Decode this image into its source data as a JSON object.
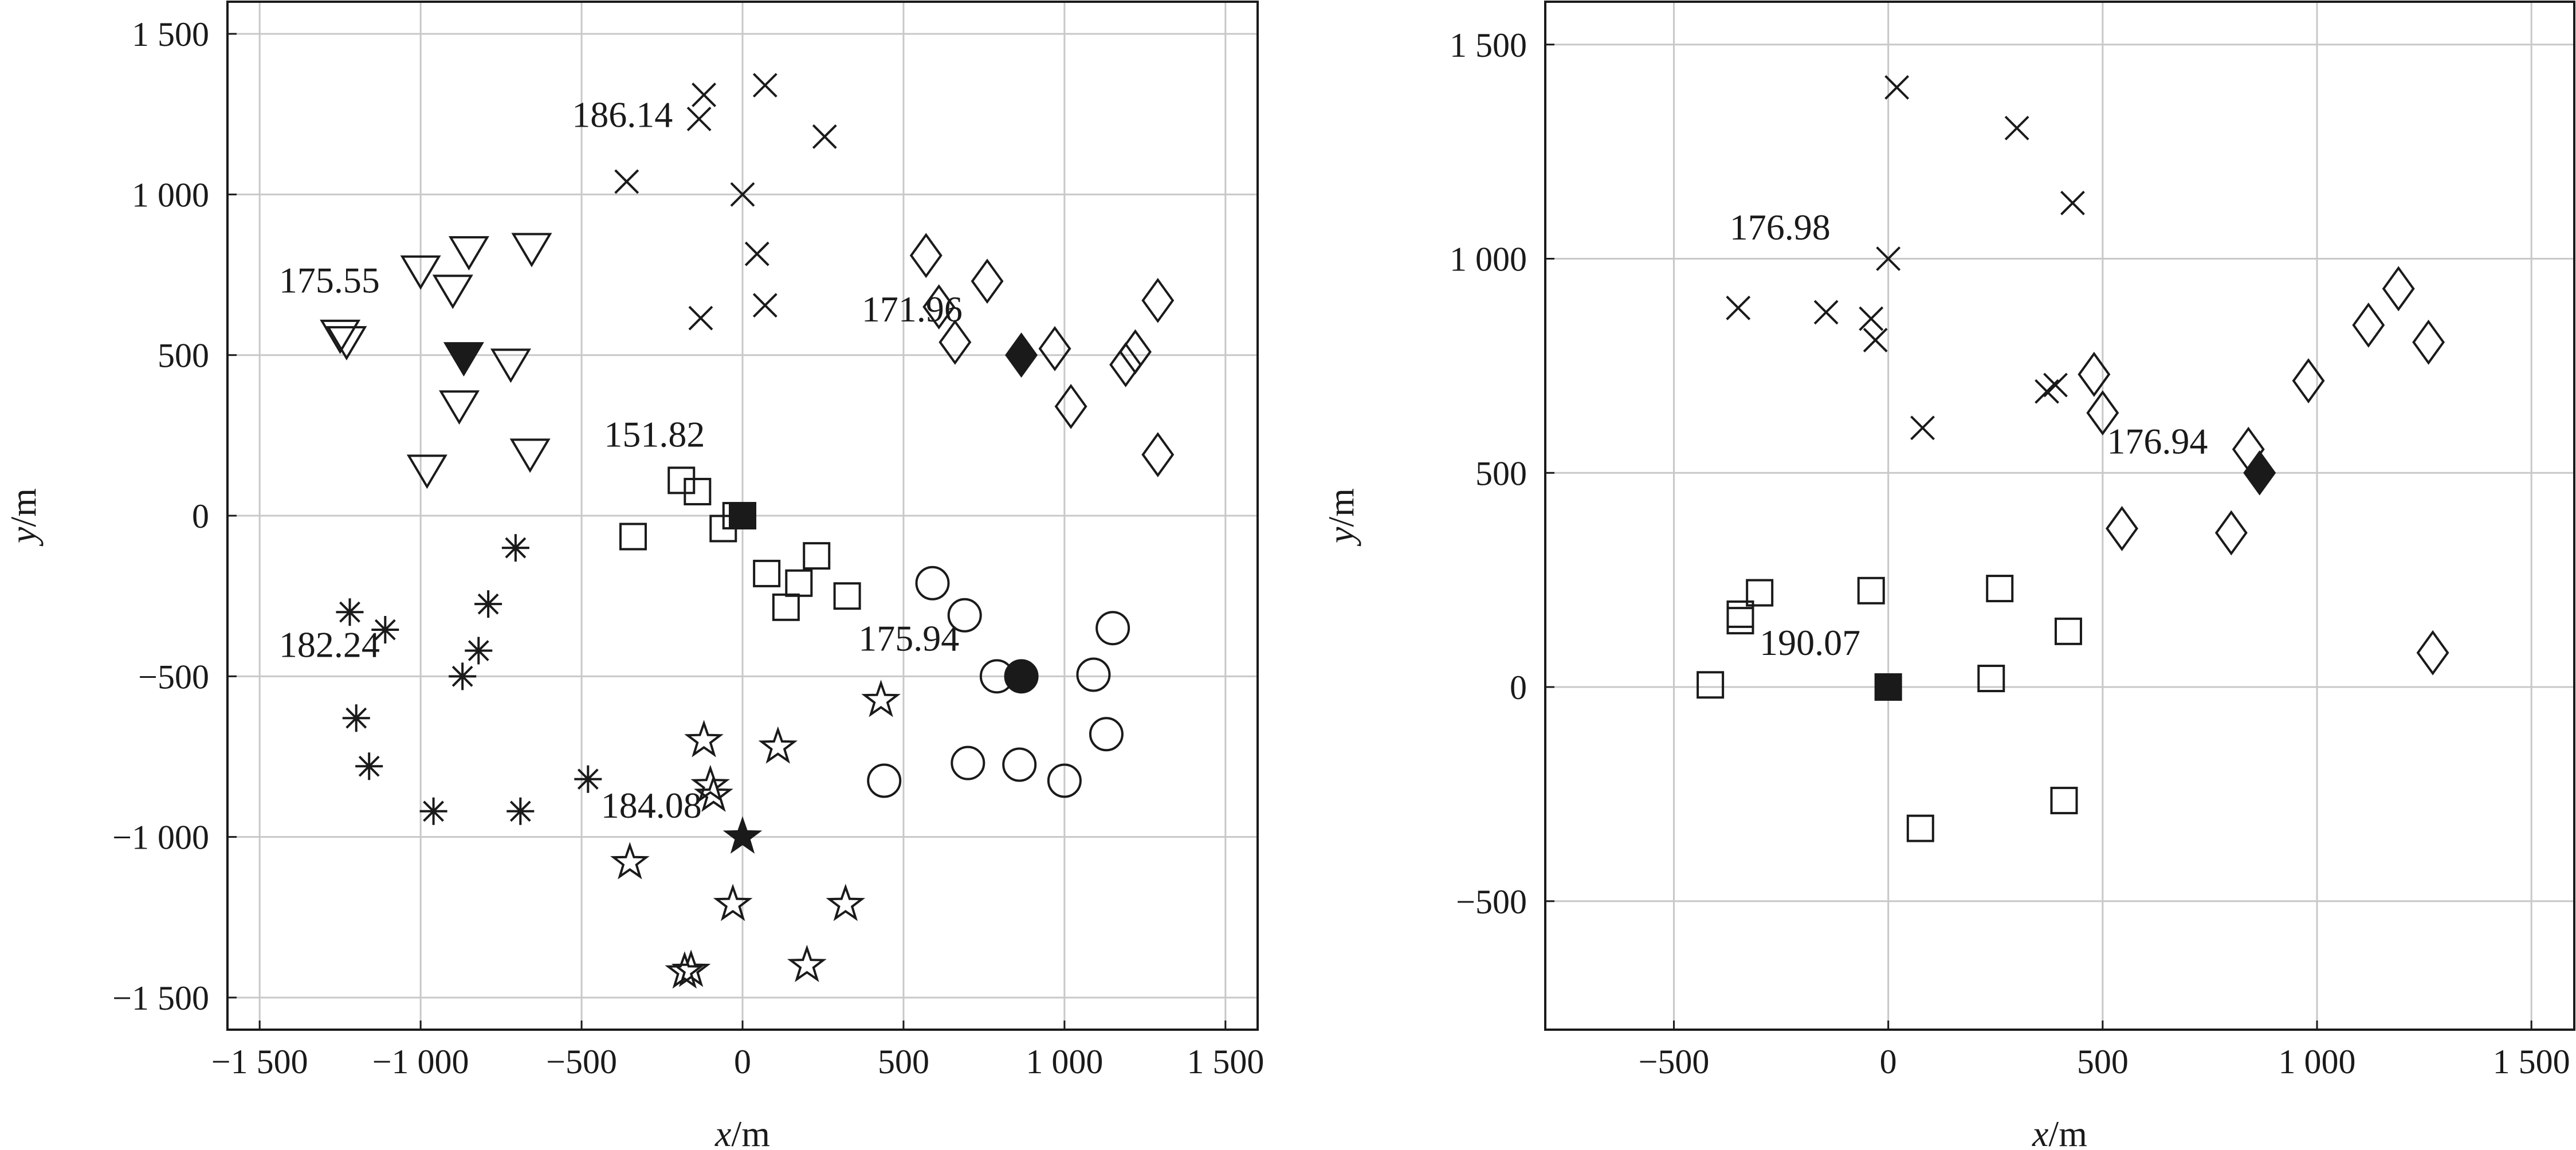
{
  "chart_data": [
    {
      "type": "scatter",
      "xlabel_var": "x",
      "xlabel_unit": "/m",
      "ylabel_var": "y",
      "ylabel_unit": "/m",
      "xlim": [
        -1600,
        1600
      ],
      "ylim": [
        -1600,
        1600
      ],
      "xticks": [
        -1500,
        -1000,
        -500,
        0,
        500,
        1000,
        1500
      ],
      "xtick_labels": [
        "−1 500",
        "−1 000",
        "−500",
        "0",
        "500",
        "1 000",
        "1 500"
      ],
      "yticks": [
        -1500,
        -1000,
        -500,
        0,
        500,
        1000,
        1500
      ],
      "ytick_labels": [
        "−1 500",
        "−1 000",
        "−500",
        "0",
        "500",
        "1 000",
        "1 500"
      ],
      "grid": true,
      "series": [
        {
          "marker": "cross",
          "filled": false,
          "points": [
            [
              -120,
              1310
            ],
            [
              70,
              1340
            ],
            [
              -135,
              1235
            ],
            [
              255,
              1180
            ],
            [
              -360,
              1040
            ],
            [
              0,
              1000
            ],
            [
              45,
              815
            ],
            [
              70,
              655
            ],
            [
              -130,
              615
            ]
          ]
        },
        {
          "marker": "triangle-down",
          "filled": false,
          "points": [
            [
              -1000,
              770
            ],
            [
              -850,
              830
            ],
            [
              -655,
              840
            ],
            [
              -900,
              710
            ],
            [
              -1250,
              570
            ],
            [
              -1230,
              550
            ],
            [
              -720,
              480
            ],
            [
              -880,
              350
            ],
            [
              -660,
              200
            ],
            [
              -980,
              150
            ]
          ]
        },
        {
          "marker": "triangle-down",
          "filled": true,
          "points": [
            [
              -866,
              500
            ]
          ]
        },
        {
          "marker": "diamond",
          "filled": false,
          "points": [
            [
              570,
              810
            ],
            [
              610,
              650
            ],
            [
              760,
              730
            ],
            [
              660,
              540
            ],
            [
              970,
              520
            ],
            [
              1290,
              670
            ],
            [
              1220,
              510
            ],
            [
              1190,
              470
            ],
            [
              1020,
              340
            ],
            [
              1290,
              190
            ]
          ]
        },
        {
          "marker": "diamond",
          "filled": true,
          "points": [
            [
              866,
              500
            ]
          ]
        },
        {
          "marker": "square",
          "filled": false,
          "points": [
            [
              -190,
              110
            ],
            [
              -140,
              75
            ],
            [
              -20,
              0
            ],
            [
              -60,
              -40
            ],
            [
              -340,
              -65
            ],
            [
              230,
              -125
            ],
            [
              75,
              -180
            ],
            [
              175,
              -210
            ],
            [
              135,
              -285
            ],
            [
              325,
              -250
            ]
          ]
        },
        {
          "marker": "square",
          "filled": true,
          "points": [
            [
              0,
              0
            ]
          ]
        },
        {
          "marker": "asterisk",
          "filled": false,
          "points": [
            [
              -705,
              -100
            ],
            [
              -1220,
              -300
            ],
            [
              -1110,
              -355
            ],
            [
              -790,
              -275
            ],
            [
              -820,
              -420
            ],
            [
              -870,
              -500
            ],
            [
              -1200,
              -630
            ],
            [
              -1160,
              -780
            ],
            [
              -960,
              -920
            ],
            [
              -690,
              -920
            ],
            [
              -480,
              -820
            ]
          ]
        },
        {
          "marker": "circle",
          "filled": false,
          "points": [
            [
              590,
              -210
            ],
            [
              690,
              -310
            ],
            [
              1150,
              -350
            ],
            [
              790,
              -500
            ],
            [
              1090,
              -495
            ],
            [
              1130,
              -680
            ],
            [
              700,
              -770
            ],
            [
              860,
              -775
            ],
            [
              1000,
              -825
            ],
            [
              440,
              -825
            ]
          ]
        },
        {
          "marker": "circle",
          "filled": true,
          "points": [
            [
              866,
              -500
            ]
          ]
        },
        {
          "marker": "star",
          "filled": false,
          "points": [
            [
              430,
              -575
            ],
            [
              -120,
              -700
            ],
            [
              110,
              -720
            ],
            [
              -100,
              -840
            ],
            [
              -90,
              -870
            ],
            [
              -350,
              -1080
            ],
            [
              -30,
              -1210
            ],
            [
              320,
              -1210
            ],
            [
              -160,
              -1415
            ],
            [
              -180,
              -1420
            ],
            [
              200,
              -1400
            ]
          ]
        },
        {
          "marker": "star",
          "filled": true,
          "points": [
            [
              0,
              -1000
            ]
          ]
        }
      ],
      "annotations": [
        {
          "text": "186.14",
          "x": -530,
          "y": 1210
        },
        {
          "text": "175.55",
          "x": -1440,
          "y": 695
        },
        {
          "text": "171.96",
          "x": 370,
          "y": 605
        },
        {
          "text": "151.82",
          "x": -430,
          "y": 215
        },
        {
          "text": "182.24",
          "x": -1440,
          "y": -440
        },
        {
          "text": "175.94",
          "x": 360,
          "y": -420
        },
        {
          "text": "184.08",
          "x": -440,
          "y": -940
        }
      ]
    },
    {
      "type": "scatter",
      "xlabel_var": "x",
      "xlabel_unit": "/m",
      "ylabel_var": "y",
      "ylabel_unit": "/m",
      "xlim": [
        -800,
        1600
      ],
      "ylim": [
        -800,
        1600
      ],
      "xticks": [
        -500,
        0,
        500,
        1000,
        1500
      ],
      "xtick_labels": [
        "−500",
        "0",
        "500",
        "1 000",
        "1 500"
      ],
      "yticks": [
        -500,
        0,
        500,
        1000,
        1500
      ],
      "ytick_labels": [
        "−500",
        "0",
        "500",
        "1 000",
        "1 500"
      ],
      "grid": true,
      "series": [
        {
          "marker": "cross",
          "filled": false,
          "points": [
            [
              20,
              1400
            ],
            [
              300,
              1305
            ],
            [
              430,
              1130
            ],
            [
              0,
              1000
            ],
            [
              -350,
              885
            ],
            [
              -145,
              875
            ],
            [
              -40,
              860
            ],
            [
              -30,
              810
            ],
            [
              370,
              690
            ],
            [
              390,
              705
            ],
            [
              80,
              605
            ]
          ]
        },
        {
          "marker": "diamond",
          "filled": false,
          "points": [
            [
              1190,
              930
            ],
            [
              1120,
              845
            ],
            [
              1260,
              805
            ],
            [
              980,
              715
            ],
            [
              480,
              730
            ],
            [
              500,
              640
            ],
            [
              840,
              555
            ],
            [
              545,
              370
            ],
            [
              800,
              360
            ],
            [
              1270,
              80
            ]
          ]
        },
        {
          "marker": "diamond",
          "filled": true,
          "points": [
            [
              866,
              500
            ]
          ]
        },
        {
          "marker": "square",
          "filled": false,
          "points": [
            [
              -300,
              220
            ],
            [
              -40,
              225
            ],
            [
              260,
              230
            ],
            [
              -345,
              170
            ],
            [
              -345,
              155
            ],
            [
              420,
              130
            ],
            [
              240,
              20
            ],
            [
              -415,
              5
            ],
            [
              410,
              -265
            ],
            [
              75,
              -330
            ]
          ]
        },
        {
          "marker": "square",
          "filled": true,
          "points": [
            [
              0,
              0
            ]
          ]
        }
      ],
      "annotations": [
        {
          "text": "176.98",
          "x": -370,
          "y": 1045
        },
        {
          "text": "176.94",
          "x": 510,
          "y": 545
        },
        {
          "text": "190.07",
          "x": -300,
          "y": 75
        }
      ]
    }
  ]
}
